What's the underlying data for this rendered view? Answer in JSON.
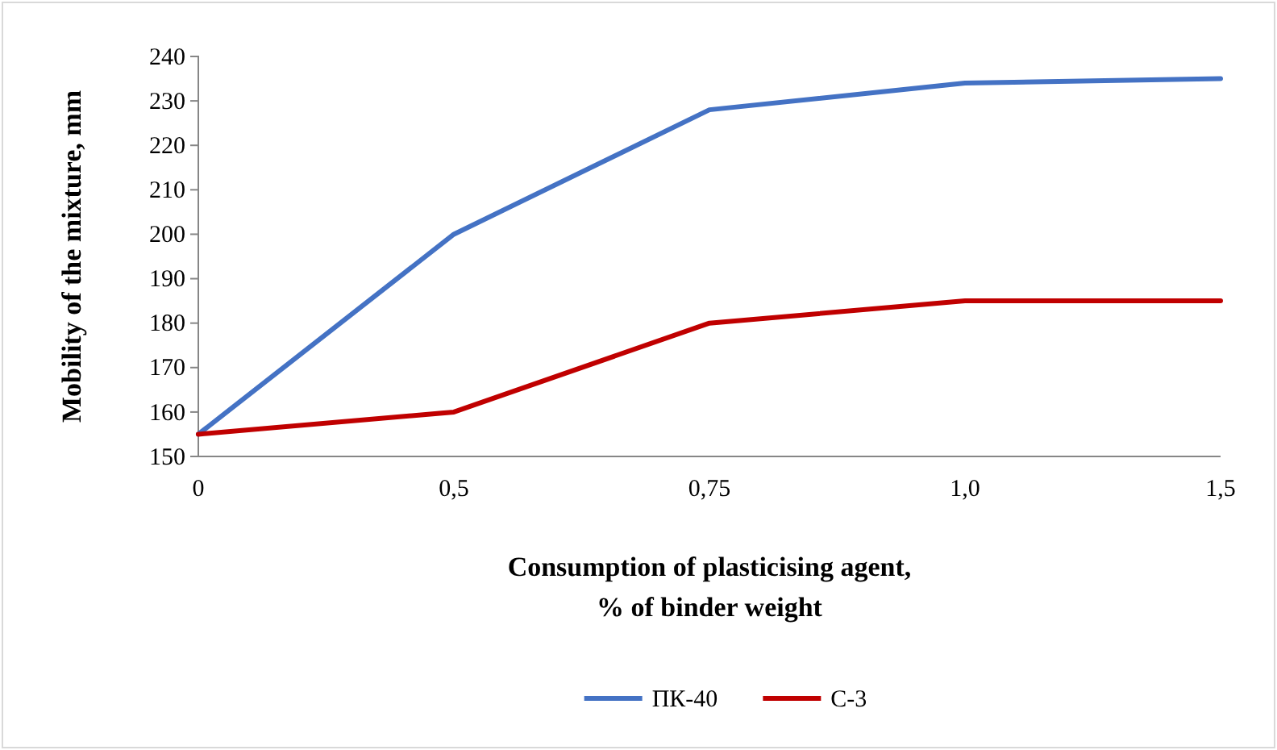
{
  "chart_data": {
    "type": "line",
    "xlabel": "Consumption of plasticising agent,\n% of binder weight",
    "ylabel": "Mobility of the mixture, mm",
    "categories": [
      "0",
      "0,5",
      "0,75",
      "1,0",
      "1,5"
    ],
    "series": [
      {
        "name": "ПК-40",
        "color": "#4472c4",
        "values": [
          155,
          200,
          228,
          234,
          235
        ]
      },
      {
        "name": "С-3",
        "color": "#c00000",
        "values": [
          155,
          160,
          180,
          185,
          185
        ]
      }
    ],
    "ylim": [
      150,
      240
    ],
    "yticks": [
      150,
      160,
      170,
      180,
      190,
      200,
      210,
      220,
      230,
      240
    ],
    "grid": false,
    "legend": "bottom",
    "marker": "none",
    "line_style": "solid"
  }
}
